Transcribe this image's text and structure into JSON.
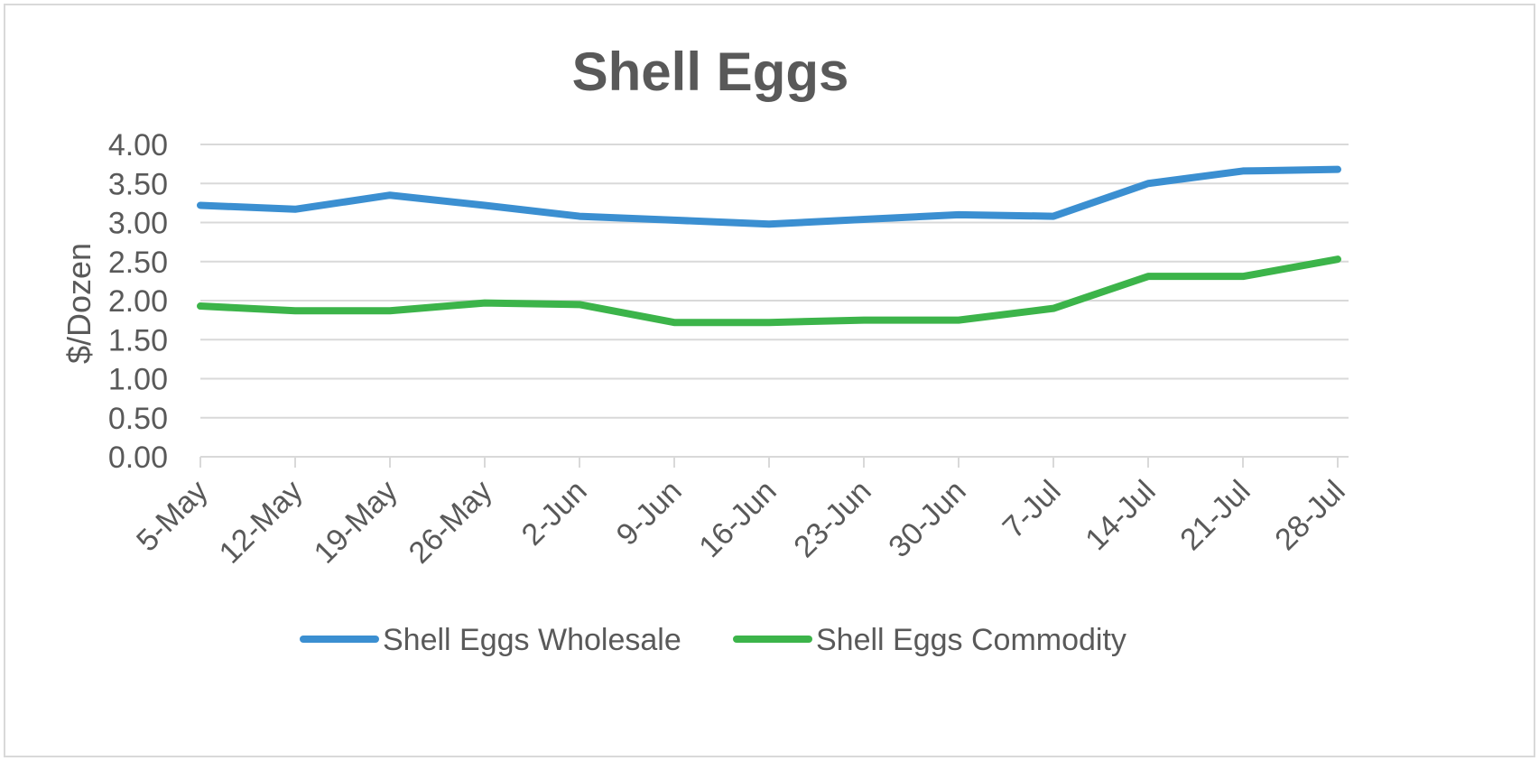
{
  "chart_data": {
    "type": "line",
    "title": "Shell Eggs",
    "xlabel": "",
    "ylabel": "$/Dozen",
    "categories": [
      "5-May",
      "12-May",
      "19-May",
      "26-May",
      "2-Jun",
      "9-Jun",
      "16-Jun",
      "23-Jun",
      "30-Jun",
      "7-Jul",
      "14-Jul",
      "21-Jul",
      "28-Jul"
    ],
    "ylim": [
      0,
      4
    ],
    "yticks": [
      "0.00",
      "0.50",
      "1.00",
      "1.50",
      "2.00",
      "2.50",
      "3.00",
      "3.50",
      "4.00"
    ],
    "grid": true,
    "legend_position": "bottom",
    "series": [
      {
        "name": "Shell Eggs Wholesale",
        "color": "#3b8fd1",
        "values": [
          3.22,
          3.17,
          3.35,
          3.22,
          3.08,
          3.03,
          2.98,
          3.04,
          3.1,
          3.08,
          3.5,
          3.66,
          3.68
        ]
      },
      {
        "name": "Shell Eggs Commodity",
        "color": "#3cb44a",
        "values": [
          1.93,
          1.87,
          1.87,
          1.97,
          1.95,
          1.72,
          1.72,
          1.75,
          1.75,
          1.9,
          2.31,
          2.31,
          2.53
        ]
      }
    ]
  }
}
